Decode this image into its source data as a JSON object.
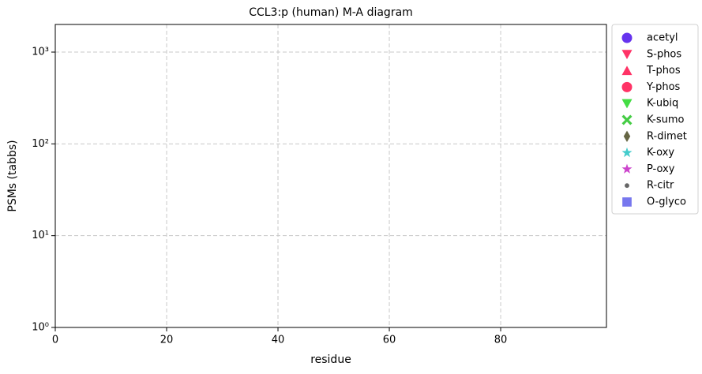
{
  "chart_data": {
    "type": "scatter",
    "title": "CCL3:p (human) M-A diagram",
    "xlabel": "residue",
    "ylabel": "PSMs (tabbs)",
    "xlim": [
      0,
      99
    ],
    "xticks": [
      0,
      20,
      40,
      60,
      80
    ],
    "ylim": [
      1,
      2000
    ],
    "yscale": "log",
    "yticks": [
      {
        "value": 1,
        "label": "10⁰"
      },
      {
        "value": 10,
        "label": "10¹"
      },
      {
        "value": 100,
        "label": "10²"
      },
      {
        "value": 1000,
        "label": "10³"
      }
    ],
    "grid": true,
    "legend": "outside upper right",
    "series": [
      {
        "name": "acetyl",
        "color": "#6633ee",
        "marker": "circle",
        "x": [],
        "values": []
      },
      {
        "name": "S-phos",
        "color": "#ff3366",
        "marker": "triangle-down",
        "x": [],
        "values": []
      },
      {
        "name": "T-phos",
        "color": "#ff3366",
        "marker": "triangle-up",
        "x": [],
        "values": []
      },
      {
        "name": "Y-phos",
        "color": "#ff3366",
        "marker": "circle",
        "x": [],
        "values": []
      },
      {
        "name": "K-ubiq",
        "color": "#44dd44",
        "marker": "triangle-down",
        "x": [],
        "values": []
      },
      {
        "name": "K-sumo",
        "color": "#44cc44",
        "marker": "x",
        "x": [],
        "values": []
      },
      {
        "name": "R-dimet",
        "color": "#666644",
        "marker": "diamond",
        "x": [],
        "values": []
      },
      {
        "name": "K-oxy",
        "color": "#44cccc",
        "marker": "star",
        "x": [],
        "values": []
      },
      {
        "name": "P-oxy",
        "color": "#cc44cc",
        "marker": "star",
        "x": [],
        "values": []
      },
      {
        "name": "R-citr",
        "color": "#666666",
        "marker": "dot",
        "x": [],
        "values": []
      },
      {
        "name": "O-glyco",
        "color": "#7777ee",
        "marker": "square",
        "x": [],
        "values": []
      }
    ]
  }
}
